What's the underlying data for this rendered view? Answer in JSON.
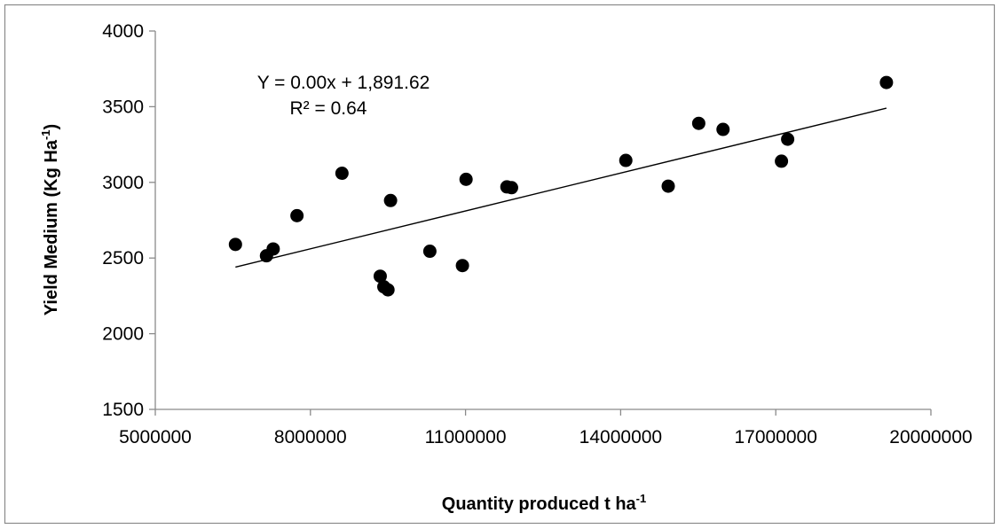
{
  "chart_data": {
    "type": "scatter",
    "xlabel": "Quantity produced t ha",
    "xlabel_sup": "-1",
    "ylabel": "Yield Medium (Kg Ha",
    "ylabel_sup": "-1",
    "ylabel_close": ")",
    "xlim": [
      5000000,
      20000000
    ],
    "ylim": [
      1500,
      4000
    ],
    "xticks": [
      5000000,
      8000000,
      11000000,
      14000000,
      17000000,
      20000000
    ],
    "yticks": [
      1500,
      2000,
      2500,
      3000,
      3500,
      4000
    ],
    "xtick_labels": [
      "5000000",
      "8000000",
      "11000000",
      "14000000",
      "17000000",
      "20000000"
    ],
    "ytick_labels": [
      "1500",
      "2000",
      "2500",
      "3000",
      "3500",
      "4000"
    ],
    "grid": false,
    "marker_color": "#000000",
    "points": [
      {
        "x": 6550000,
        "y": 2590
      },
      {
        "x": 7150000,
        "y": 2515
      },
      {
        "x": 7280000,
        "y": 2560
      },
      {
        "x": 7740000,
        "y": 2780
      },
      {
        "x": 8610000,
        "y": 3060
      },
      {
        "x": 9350000,
        "y": 2380
      },
      {
        "x": 9420000,
        "y": 2310
      },
      {
        "x": 9500000,
        "y": 2290
      },
      {
        "x": 9550000,
        "y": 2880
      },
      {
        "x": 10310000,
        "y": 2545
      },
      {
        "x": 10940000,
        "y": 2450
      },
      {
        "x": 11010000,
        "y": 3020
      },
      {
        "x": 11800000,
        "y": 2970
      },
      {
        "x": 11890000,
        "y": 2965
      },
      {
        "x": 14100000,
        "y": 3145
      },
      {
        "x": 14920000,
        "y": 2975
      },
      {
        "x": 15510000,
        "y": 3390
      },
      {
        "x": 15980000,
        "y": 3350
      },
      {
        "x": 17110000,
        "y": 3140
      },
      {
        "x": 17230000,
        "y": 3285
      },
      {
        "x": 19140000,
        "y": 3660
      }
    ],
    "trendline": {
      "type": "linear",
      "x": [
        6550000,
        19140000
      ],
      "y": [
        2440,
        3490
      ]
    },
    "annotations": {
      "equation": "Y = 0.00x + 1,891.62",
      "r_squared": "R² = 0.64"
    }
  }
}
